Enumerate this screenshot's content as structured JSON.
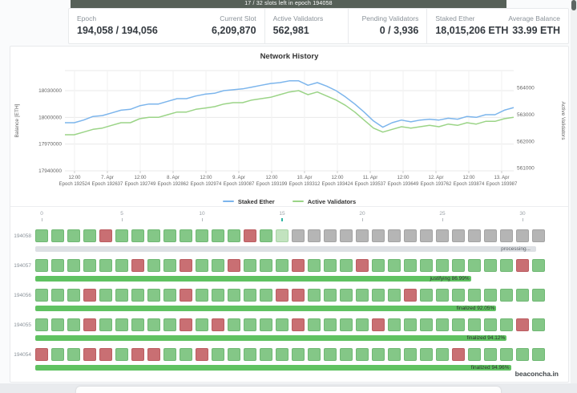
{
  "topbar": {
    "text": "17 / 32 slots left in epoch 194058"
  },
  "stats": [
    {
      "label": "Epoch",
      "value": "194,058 / 194,056"
    },
    {
      "label": "Current Slot",
      "value": "6,209,870"
    },
    {
      "label": "Active Validators",
      "value": "562,981"
    },
    {
      "label": "Pending Validators",
      "value": "0 / 3,936"
    },
    {
      "label": "Staked Ether",
      "value": "18,015,206 ETH"
    },
    {
      "label": "Average Balance",
      "value": "33.99 ETH"
    }
  ],
  "chart_data": {
    "type": "line",
    "title": "Network History",
    "ylabel_left": "Balance [ETH]",
    "ylabel_right": "Active Validators",
    "grid": true,
    "legend_position": "bottom",
    "y_left_ticks": [
      18030000,
      18000000,
      17970000,
      17940000
    ],
    "y_left_range": [
      17940000,
      18052500
    ],
    "y_right_ticks": [
      564000,
      563000,
      562000,
      561000
    ],
    "y_right_range": [
      560900,
      564650
    ],
    "x_ticks": [
      [
        "12:00",
        "Epoch 192524"
      ],
      [
        "7. Apr",
        "Epoch 192637"
      ],
      [
        "12:00",
        "Epoch 192749"
      ],
      [
        "8. Apr",
        "Epoch 192862"
      ],
      [
        "12:00",
        "Epoch 192974"
      ],
      [
        "9. Apr",
        "Epoch 193087"
      ],
      [
        "12:00",
        "Epoch 193199"
      ],
      [
        "10. Apr",
        "Epoch 193312"
      ],
      [
        "12:00",
        "Epoch 193424"
      ],
      [
        "11. Apr",
        "Epoch 193537"
      ],
      [
        "12:00",
        "Epoch 193649"
      ],
      [
        "12. Apr",
        "Epoch 193762"
      ],
      [
        "12:00",
        "Epoch 193874"
      ],
      [
        "13. Apr",
        "Epoch 193987"
      ]
    ],
    "series": [
      {
        "name": "Staked Ether",
        "axis": "left",
        "color": "#7cb5ec",
        "values": [
          17994000,
          17994000,
          17997000,
          18001000,
          18002000,
          18005000,
          18008000,
          18009000,
          18013000,
          18015000,
          18015000,
          18018000,
          18021000,
          18021000,
          18024000,
          18026000,
          18027000,
          18030000,
          18031000,
          18032000,
          18034000,
          18036000,
          18038000,
          18039000,
          18041000,
          18041000,
          18036000,
          18039000,
          18035000,
          18030000,
          18023000,
          18015000,
          18006000,
          17996000,
          17989000,
          17994000,
          17997000,
          17995000,
          17997000,
          17998000,
          17997000,
          17999000,
          17998000,
          18001000,
          18000000,
          18003000,
          18003000,
          18008000,
          18011000
        ]
      },
      {
        "name": "Active Validators",
        "axis": "right",
        "color": "#9bd487",
        "values": [
          562250,
          562250,
          562350,
          562450,
          562500,
          562600,
          562700,
          562700,
          562850,
          562900,
          562900,
          563000,
          563100,
          563100,
          563200,
          563250,
          563300,
          563400,
          563450,
          563450,
          563550,
          563600,
          563650,
          563750,
          563850,
          563900,
          563750,
          563850,
          563700,
          563550,
          563350,
          563100,
          562800,
          562500,
          562350,
          562450,
          562550,
          562500,
          562550,
          562600,
          562550,
          562650,
          562600,
          562700,
          562650,
          562750,
          562750,
          562850,
          562900
        ]
      }
    ]
  },
  "slots": {
    "ruler": [
      {
        "v": "0"
      },
      {
        "v": "5"
      },
      {
        "v": "10"
      },
      {
        "v": "15",
        "current": true
      },
      {
        "v": "20"
      },
      {
        "v": "25"
      },
      {
        "v": "30"
      }
    ],
    "rows": [
      {
        "epoch": "194058",
        "squares": "ggggrggggggggrgcpppppppppppppppp",
        "progress": {
          "kind": "processing",
          "label": "processing...",
          "pct": 100
        }
      },
      {
        "epoch": "194057",
        "squares": "ggggggrggrggrgggrgggrgggggggggrg",
        "progress": {
          "kind": "justifying",
          "label": "justifying 86.99%",
          "pct": 86.99
        }
      },
      {
        "epoch": "194056",
        "squares": "gggrgggggrgggggrrggggggrgggggggg",
        "progress": {
          "kind": "finalized",
          "label": "finalized 92.05%",
          "pct": 92.05
        }
      },
      {
        "epoch": "194055",
        "squares": "gggrgggggrgrggggrggggrggggggggrg",
        "progress": {
          "kind": "finalized",
          "label": "finalized 94.12%",
          "pct": 94.12
        }
      },
      {
        "epoch": "194054",
        "squares": "rggrrgrrggrgggggggggggggggrggggg",
        "progress": {
          "kind": "finalized",
          "label": "finalized 94.96%",
          "pct": 94.96
        }
      }
    ],
    "watermark": "beaconcha.in"
  },
  "palette": {
    "ok": "#84c787",
    "ok_border": "#6fb873",
    "missed": "#c96f73",
    "missed_border": "#bb5d61",
    "current": "#c2e3bf",
    "current_border": "#a8d3a5",
    "pending": "#b5b5b5",
    "pending_border": "#a3a3a3",
    "bar_green": "#60c262",
    "bar_gray": "#dde0e4",
    "bar_label_dark": "#2b2f2b",
    "bar_label_gray": "#5a5f66",
    "topbar_bg": "#566058",
    "current_tick": "#2fb5a3",
    "line_staked": "#7cb5ec",
    "line_validators": "#9bd487"
  }
}
